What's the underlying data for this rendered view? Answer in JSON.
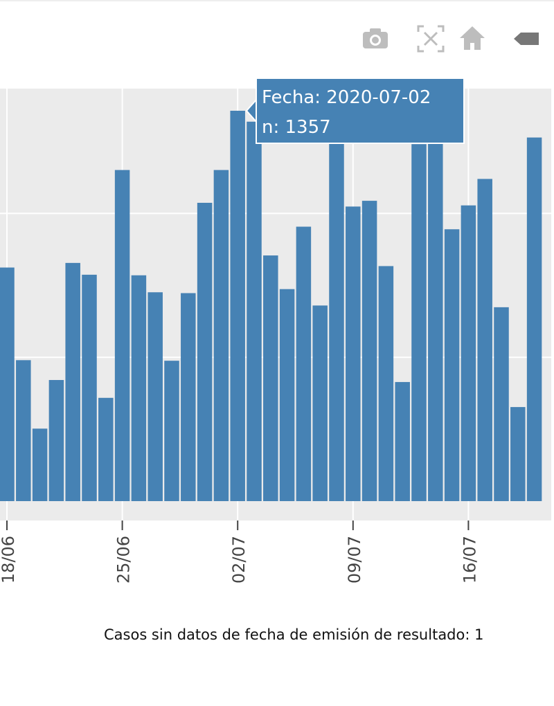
{
  "modebar": {
    "buttons": [
      {
        "icon": "camera-icon",
        "label": "Download plot as png"
      },
      {
        "icon": "autoscale-icon",
        "label": "Autoscale"
      },
      {
        "icon": "home-icon",
        "label": "Reset axes"
      },
      {
        "icon": "tag-icon",
        "label": "Show closest data on hover"
      }
    ]
  },
  "colors": {
    "bar": "#4682b4",
    "plot_bg": "#ebebeb",
    "grid": "#ffffff",
    "tooltip_bg": "#4682b4",
    "tooltip_text": "#ffffff"
  },
  "chart_data": {
    "type": "bar",
    "x": [
      "2020-06-18",
      "2020-06-19",
      "2020-06-20",
      "2020-06-21",
      "2020-06-22",
      "2020-06-23",
      "2020-06-24",
      "2020-06-25",
      "2020-06-26",
      "2020-06-27",
      "2020-06-28",
      "2020-06-29",
      "2020-06-30",
      "2020-07-01",
      "2020-07-02",
      "2020-07-03",
      "2020-07-04",
      "2020-07-05",
      "2020-07-06",
      "2020-07-07",
      "2020-07-08",
      "2020-07-09",
      "2020-07-10",
      "2020-07-11",
      "2020-07-12",
      "2020-07-13",
      "2020-07-14",
      "2020-07-15",
      "2020-07-16",
      "2020-07-17",
      "2020-07-18",
      "2020-07-19",
      "2020-07-20"
    ],
    "values": [
      812,
      490,
      252,
      421,
      828,
      787,
      359,
      1151,
      785,
      726,
      488,
      723,
      1037,
      1151,
      1357,
      1319,
      854,
      737,
      954,
      680,
      1246,
      1024,
      1044,
      817,
      414,
      1241,
      1249,
      945,
      1028,
      1120,
      674,
      327,
      1264
    ],
    "tick_labels": [
      "18/06",
      "25/06",
      "02/07",
      "09/07",
      "16/07"
    ],
    "tick_dates": [
      "2020-06-18",
      "2020-06-25",
      "2020-07-02",
      "2020-07-09",
      "2020-07-16"
    ],
    "ylim": [
      0,
      1450
    ],
    "y_gridlines": [
      500,
      1000,
      1500
    ],
    "grid": true,
    "tooltip": {
      "date_prefix": "Fecha: ",
      "date_value": "2020-07-02",
      "n_prefix": "n: ",
      "n_value": "1357"
    }
  },
  "footnote": "Casos sin datos de fecha de emisión de resultado: 1"
}
